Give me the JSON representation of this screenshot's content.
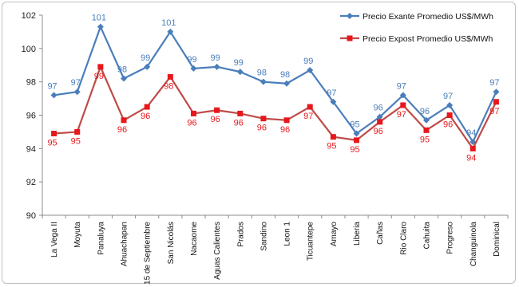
{
  "chart_data": {
    "type": "line",
    "categories": [
      "La Vega II",
      "Moyuta",
      "Panaluya",
      "Ahuachapan",
      "15 de Septiembre",
      "San Nicolás",
      "Nacaome",
      "Aguas Calientes",
      "Prados",
      "Sandino",
      "Leon 1",
      "Ticuantepe",
      "Amayo",
      "Liberia",
      "Cañas",
      "Rio Claro",
      "Cahuita",
      "Progreso",
      "Changuinola",
      "Dominical"
    ],
    "series": [
      {
        "name": "Precio Exante Promedio US$/MWh",
        "color": "#4a7ebb",
        "marker": "diamond",
        "values": [
          97.2,
          97.4,
          101.3,
          98.2,
          98.9,
          101.0,
          98.8,
          98.9,
          98.6,
          98.0,
          97.9,
          98.7,
          96.8,
          94.9,
          95.9,
          97.2,
          95.7,
          96.6,
          94.4,
          97.4
        ],
        "labels": [
          "97",
          "97",
          "101",
          "98",
          "99",
          "101",
          "99",
          "99",
          "99",
          "98",
          "98",
          "99",
          "97",
          "95",
          "96",
          "97",
          "96",
          "97",
          "94",
          "97"
        ]
      },
      {
        "name": "Precio Expost Promedio US$/MWh",
        "color": "#e8171b",
        "line_color": "#be4b48",
        "marker": "square",
        "values": [
          94.9,
          95.0,
          98.9,
          95.7,
          96.5,
          98.3,
          96.1,
          96.3,
          96.1,
          95.8,
          95.7,
          96.5,
          94.7,
          94.5,
          95.6,
          96.6,
          95.1,
          96.0,
          94.0,
          96.8
        ],
        "labels": [
          "95",
          "95",
          "99",
          "96",
          "96",
          "98",
          "96",
          "96",
          "96",
          "96",
          "96",
          "97",
          "95",
          "95",
          "96",
          "97",
          "95",
          "96",
          "94",
          "97"
        ]
      }
    ],
    "y_ticks": [
      "90",
      "92",
      "94",
      "96",
      "98",
      "100",
      "102"
    ],
    "ylim": [
      90,
      102
    ],
    "grid": false,
    "legend_position": "top-right"
  }
}
